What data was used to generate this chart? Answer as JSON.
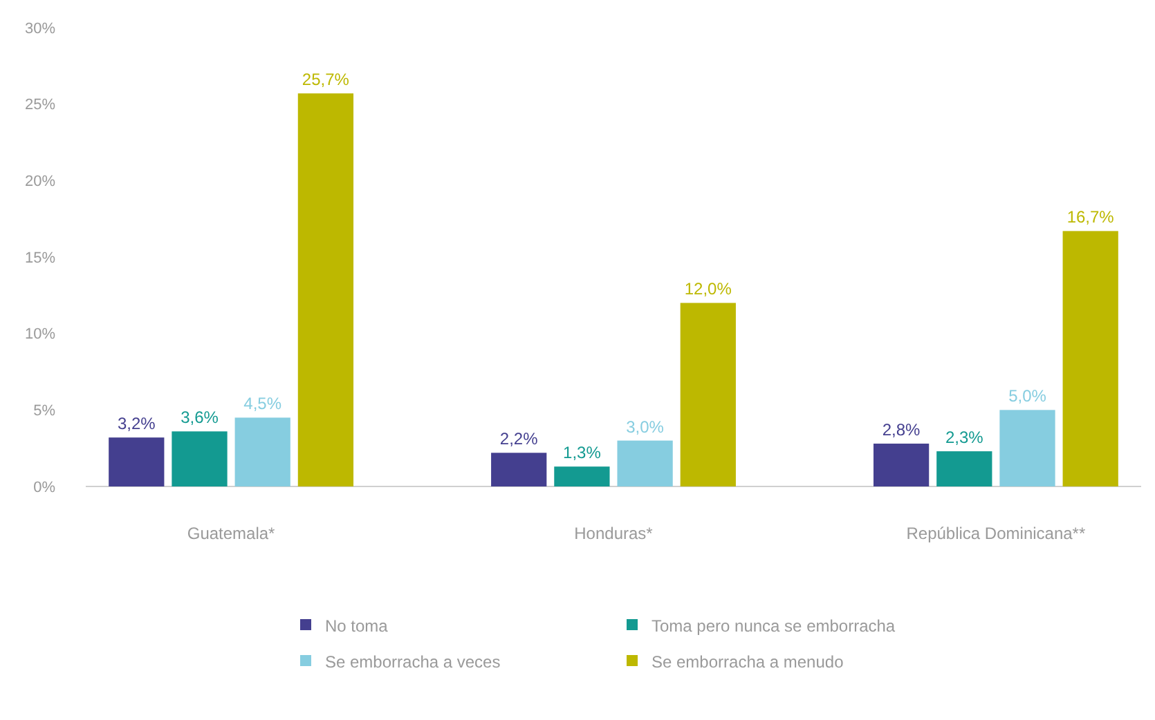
{
  "chart_data": {
    "type": "bar",
    "categories": [
      "Guatemala*",
      "Honduras*",
      "República Dominicana**"
    ],
    "series": [
      {
        "name": "No toma",
        "color": "#443f8f",
        "values": [
          3.2,
          2.2,
          2.8
        ],
        "value_labels": [
          "3,2%",
          "2,2%",
          "2,8%"
        ]
      },
      {
        "name": "Toma pero nunca se emborracha",
        "color": "#139a91",
        "values": [
          3.6,
          1.3,
          2.3
        ],
        "value_labels": [
          "3,6%",
          "1,3%",
          "2,3%"
        ]
      },
      {
        "name": "Se emborracha a veces",
        "color": "#86cde0",
        "values": [
          4.5,
          3.0,
          5.0
        ],
        "value_labels": [
          "4,5%",
          "3,0%",
          "5,0%"
        ]
      },
      {
        "name": "Se emborracha a menudo",
        "color": "#bdb800",
        "values": [
          25.7,
          12.0,
          16.7
        ],
        "value_labels": [
          "25,7%",
          "12,0%",
          "16,7%"
        ]
      }
    ],
    "ylim": [
      0,
      30
    ],
    "yticks": [
      {
        "value": 0,
        "label": "0%"
      },
      {
        "value": 5,
        "label": "5%"
      },
      {
        "value": 10,
        "label": "10%"
      },
      {
        "value": 15,
        "label": "15%"
      },
      {
        "value": 20,
        "label": "20%"
      },
      {
        "value": 25,
        "label": "25%"
      },
      {
        "value": 30,
        "label": "30%"
      }
    ],
    "grid": false,
    "legend": "bottom"
  }
}
